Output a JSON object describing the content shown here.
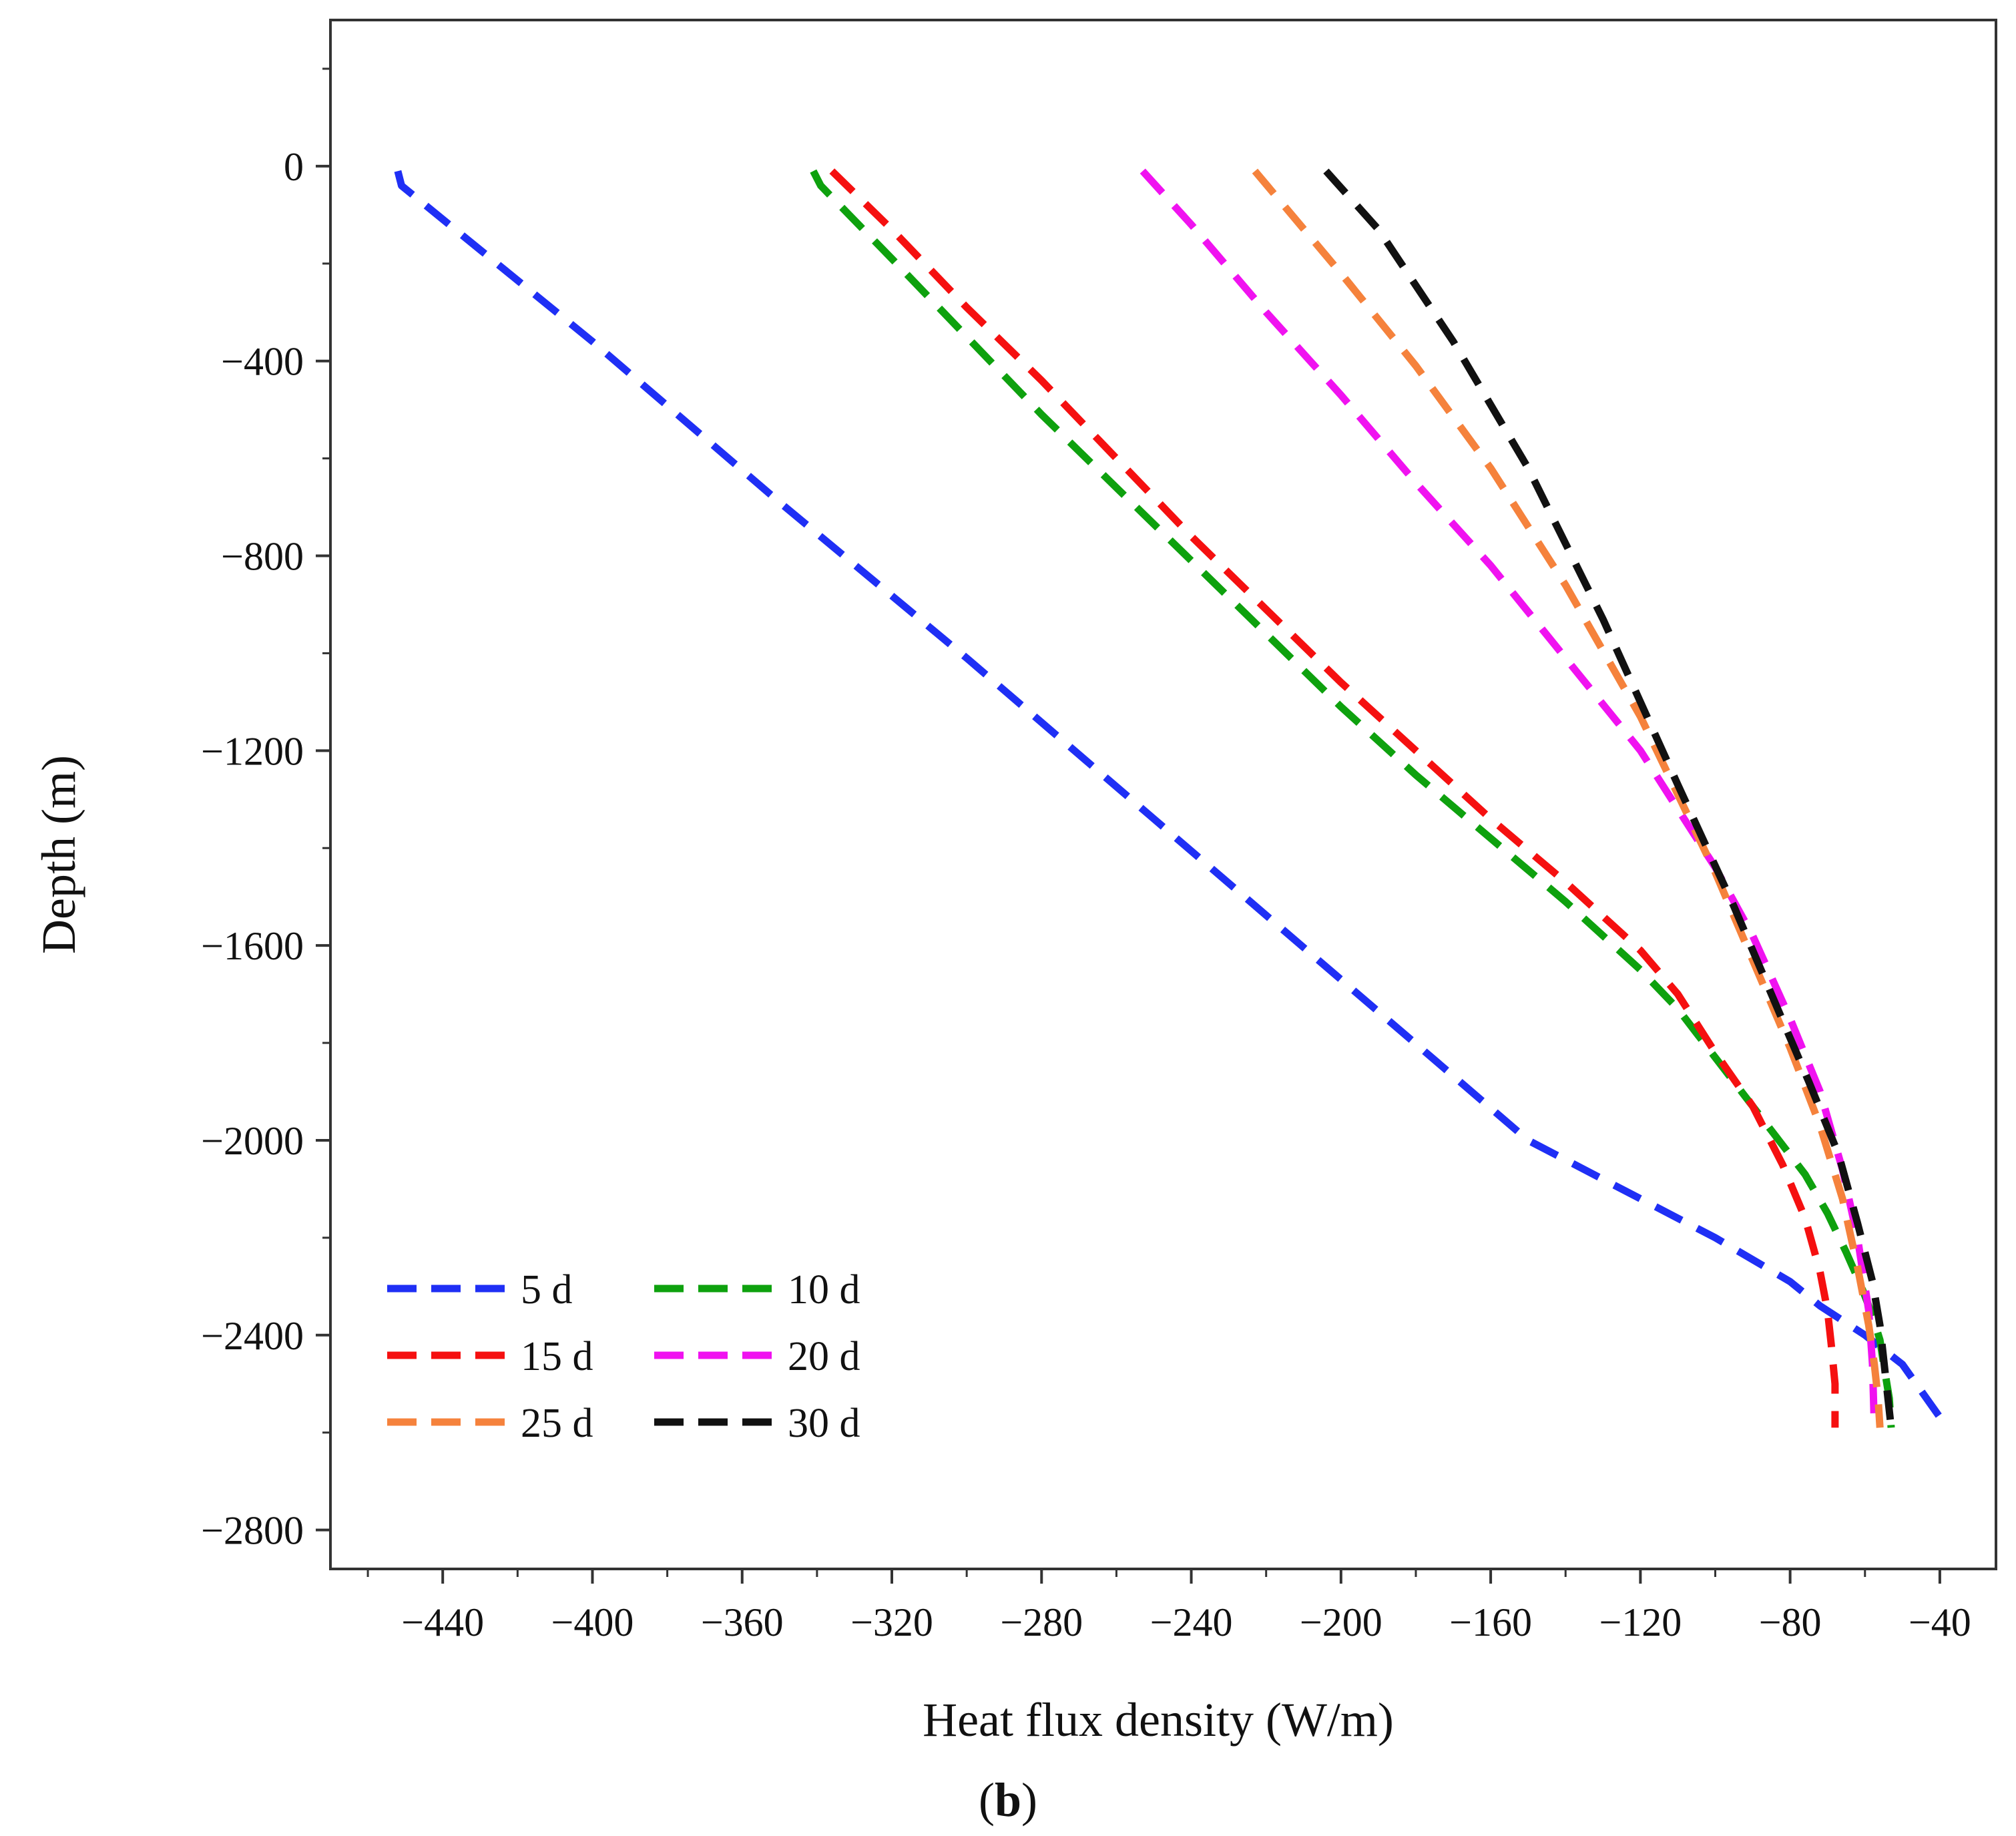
{
  "chart_data": {
    "type": "line",
    "title": "",
    "xlabel": "Heat flux density (W/m)",
    "ylabel": "Depth (m)",
    "xlim": [
      -470,
      -25
    ],
    "ylim": [
      -2880,
      300
    ],
    "xticks": [
      -440,
      -400,
      -360,
      -320,
      -280,
      -240,
      -200,
      -160,
      -120,
      -80,
      -40
    ],
    "xtick_labels": [
      "−440",
      "−400",
      "−360",
      "−320",
      "−280",
      "−240",
      "−200",
      "−160",
      "−120",
      "−80",
      "−40"
    ],
    "yticks": [
      0,
      -400,
      -800,
      -1200,
      -1600,
      -2000,
      -2400,
      -2800
    ],
    "ytick_labels": [
      "0",
      "−400",
      "−800",
      "−1200",
      "−1600",
      "−2000",
      "−2400",
      "−2800"
    ],
    "grid": false,
    "legend_position": "bottom-left",
    "series": [
      {
        "name": "5 d",
        "color": "#1f2ff5",
        "x": [
          -452,
          -451,
          -400,
          -350,
          -300,
          -250,
          -200,
          -150,
          -100,
          -80,
          -72,
          -60,
          -50,
          -38
        ],
        "y": [
          -10,
          -40,
          -360,
          -690,
          -1010,
          -1340,
          -1670,
          -2000,
          -2200,
          -2290,
          -2340,
          -2400,
          -2460,
          -2590
        ]
      },
      {
        "name": "10 d",
        "color": "#0ea10e",
        "x": [
          -341,
          -339,
          -320,
          -300,
          -280,
          -260,
          -240,
          -220,
          -200,
          -180,
          -160,
          -140,
          -120,
          -110,
          -100,
          -92,
          -84,
          -76,
          -70,
          -65,
          -61,
          -58,
          -56,
          -55,
          -53.5,
          -53
        ],
        "y": [
          -10,
          -40,
          -190,
          -350,
          -510,
          -660,
          -810,
          -960,
          -1110,
          -1250,
          -1380,
          -1510,
          -1650,
          -1730,
          -1830,
          -1910,
          -1990,
          -2070,
          -2150,
          -2230,
          -2300,
          -2360,
          -2410,
          -2460,
          -2530,
          -2590
        ]
      },
      {
        "name": "15 d",
        "color": "#f51010",
        "x": [
          -336,
          -320,
          -300,
          -280,
          -260,
          -240,
          -220,
          -200,
          -180,
          -160,
          -140,
          -120,
          -110,
          -100,
          -90,
          -82,
          -76,
          -72,
          -70,
          -69,
          -68,
          -68
        ],
        "y": [
          -10,
          -130,
          -290,
          -440,
          -600,
          -760,
          -910,
          -1060,
          -1200,
          -1340,
          -1470,
          -1610,
          -1700,
          -1820,
          -1930,
          -2050,
          -2160,
          -2270,
          -2350,
          -2420,
          -2500,
          -2590
        ]
      },
      {
        "name": "20 d",
        "color": "#f012f0",
        "x": [
          -253,
          -240,
          -220,
          -200,
          -180,
          -160,
          -140,
          -120,
          -100,
          -90,
          -80,
          -72,
          -66,
          -62,
          -59,
          -58,
          -57.5
        ],
        "y": [
          -10,
          -120,
          -300,
          -470,
          -650,
          -820,
          -1010,
          -1200,
          -1440,
          -1580,
          -1750,
          -1900,
          -2060,
          -2200,
          -2350,
          -2460,
          -2590
        ]
      },
      {
        "name": "25 d",
        "color": "#f5823c",
        "x": [
          -223,
          -200,
          -180,
          -160,
          -140,
          -120,
          -100,
          -90,
          -80,
          -72,
          -66,
          -62,
          -59,
          -57.5,
          -56.5,
          -56
        ],
        "y": [
          -10,
          -220,
          -410,
          -620,
          -860,
          -1130,
          -1450,
          -1630,
          -1810,
          -1970,
          -2120,
          -2260,
          -2380,
          -2460,
          -2530,
          -2590
        ]
      },
      {
        "name": "30 d",
        "color": "#111111",
        "x": [
          -204,
          -190,
          -170,
          -150,
          -130,
          -110,
          -95,
          -85,
          -75,
          -67,
          -62,
          -58,
          -56,
          -55,
          -54,
          -53
        ],
        "y": [
          -10,
          -130,
          -360,
          -620,
          -930,
          -1270,
          -1520,
          -1700,
          -1880,
          -2030,
          -2170,
          -2290,
          -2380,
          -2450,
          -2520,
          -2590
        ]
      }
    ],
    "panel_label": "b"
  }
}
